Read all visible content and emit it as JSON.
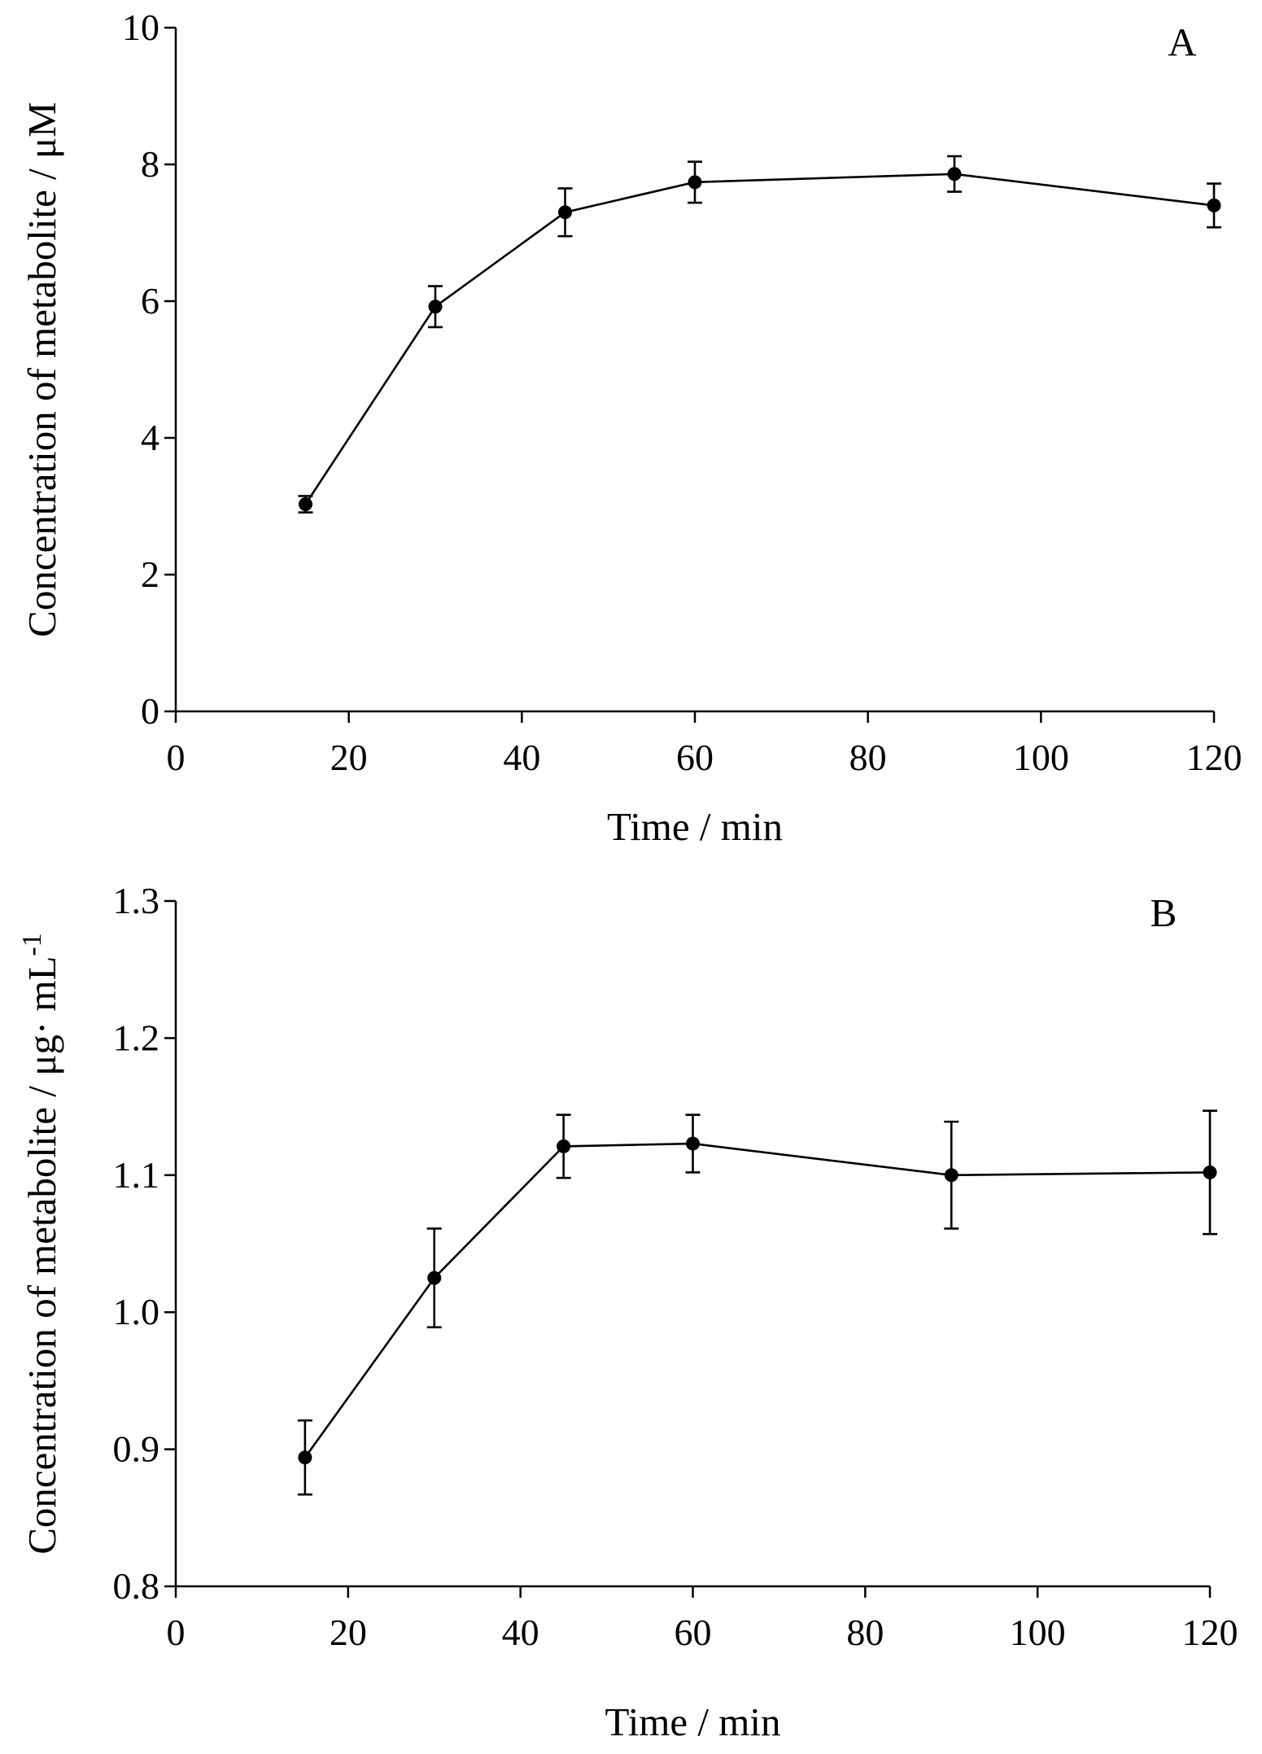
{
  "chart_data": [
    {
      "type": "line",
      "panel_label": "A",
      "title": "",
      "xlabel": "Time  / min",
      "ylabel": "Concentration of metabolite  / μM",
      "xlim": [
        0,
        120
      ],
      "ylim": [
        0,
        10
      ],
      "xticks": [
        0,
        20,
        40,
        60,
        80,
        100,
        120
      ],
      "yticks": [
        0,
        2,
        4,
        6,
        8,
        10
      ],
      "xtick_labels": [
        "0",
        "20",
        "40",
        "60",
        "80",
        "100",
        "120"
      ],
      "ytick_labels": [
        "0",
        "2",
        "4",
        "6",
        "8",
        "10"
      ],
      "grid": false,
      "series": [
        {
          "name": "metabolite",
          "x": [
            15,
            30,
            45,
            60,
            90,
            120
          ],
          "values": [
            3.03,
            5.92,
            7.3,
            7.74,
            7.86,
            7.4
          ],
          "error": [
            0.12,
            0.3,
            0.35,
            0.3,
            0.26,
            0.32
          ]
        }
      ]
    },
    {
      "type": "line",
      "panel_label": "B",
      "title": "",
      "xlabel": "Time / min",
      "ylabel": "Concentration of metabolite  / μg· mL",
      "ylabel_superscript": "-1",
      "xlim": [
        0,
        120
      ],
      "ylim": [
        0.8,
        1.3
      ],
      "xticks": [
        0,
        20,
        40,
        60,
        80,
        100,
        120
      ],
      "yticks": [
        0.8,
        0.9,
        1.0,
        1.1,
        1.2,
        1.3
      ],
      "xtick_labels": [
        "0",
        "20",
        "40",
        "60",
        "80",
        "100",
        "120"
      ],
      "ytick_labels": [
        "0.8",
        "0.9",
        "1.0",
        "1.1",
        "1.2",
        "1.3"
      ],
      "grid": false,
      "series": [
        {
          "name": "metabolite",
          "x": [
            15,
            30,
            45,
            60,
            90,
            120
          ],
          "values": [
            0.894,
            1.025,
            1.121,
            1.123,
            1.1,
            1.102
          ],
          "error": [
            0.027,
            0.036,
            0.023,
            0.021,
            0.039,
            0.045
          ]
        }
      ]
    }
  ]
}
